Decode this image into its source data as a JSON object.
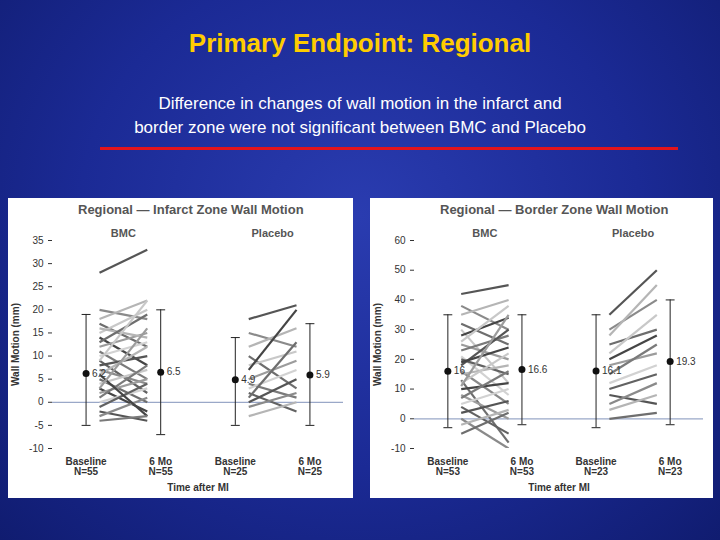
{
  "slide": {
    "title": "Primary Endpoint: Regional",
    "subtitle": [
      "Difference in changes of wall motion in the infarct and",
      "border zone  were not significant between BMC and Placebo"
    ]
  },
  "chart_data": [
    {
      "type": "line",
      "title": "Regional — Infarct Zone Wall Motion",
      "y_label": "Wall Motion (mm)",
      "x_label": "Time after MI",
      "categories": [
        "Baseline\nN=55",
        "6 Mo\nN=55",
        "Baseline\nN=25",
        "6 Mo\nN=25"
      ],
      "ylim": [
        -10,
        35
      ],
      "yticks": [
        -10,
        -5,
        0,
        5,
        10,
        15,
        20,
        25,
        30,
        35
      ],
      "grid": false,
      "means": [
        6.2,
        6.5,
        4.9,
        5.9
      ],
      "error_low": [
        -5,
        -7,
        -5,
        -5
      ],
      "error_high": [
        19,
        20,
        14,
        17
      ],
      "data_labels": true,
      "series": [
        {
          "name": "BMC",
          "values": [
            [
              28,
              33
            ],
            [
              20,
              18
            ],
            [
              18,
              22
            ],
            [
              17,
              12
            ],
            [
              15,
              20
            ],
            [
              14,
              8
            ],
            [
              12,
              15
            ],
            [
              11,
              5
            ],
            [
              10,
              13
            ],
            [
              9,
              2
            ],
            [
              8,
              10
            ],
            [
              7,
              4
            ],
            [
              6,
              12
            ],
            [
              5,
              0
            ],
            [
              4,
              7
            ],
            [
              3,
              -2
            ],
            [
              2,
              5
            ],
            [
              1,
              8
            ],
            [
              0,
              3
            ],
            [
              -1,
              4
            ],
            [
              -2,
              -4
            ],
            [
              -3,
              1
            ],
            [
              16,
              14
            ],
            [
              13,
              19
            ],
            [
              9,
              22
            ],
            [
              6,
              -3
            ],
            [
              3,
              16
            ],
            [
              -4,
              -3
            ]
          ]
        },
        {
          "name": "Placebo",
          "values": [
            [
              18,
              21
            ],
            [
              15,
              12
            ],
            [
              12,
              16
            ],
            [
              10,
              3
            ],
            [
              8,
              11
            ],
            [
              7,
              20
            ],
            [
              5,
              9
            ],
            [
              4,
              1
            ],
            [
              3,
              7
            ],
            [
              2,
              -2
            ],
            [
              0,
              5
            ],
            [
              -1,
              2
            ],
            [
              -3,
              0
            ],
            [
              1,
              13
            ]
          ]
        }
      ]
    },
    {
      "type": "line",
      "title": "Regional — Border Zone Wall Motion",
      "y_label": "Wall Motion (mm)",
      "x_label": "Time after MI",
      "categories": [
        "Baseline\nN=53",
        "6 Mo\nN=53",
        "Baseline\nN=23",
        "6 Mo\nN=23"
      ],
      "ylim": [
        -10,
        60
      ],
      "yticks": [
        -10,
        0,
        10,
        20,
        30,
        40,
        50,
        60
      ],
      "grid": false,
      "means": [
        16,
        16.6,
        16.1,
        19.3
      ],
      "error_low": [
        -3,
        -2,
        -3,
        -2
      ],
      "error_high": [
        35,
        35,
        35,
        40
      ],
      "data_labels": true,
      "series": [
        {
          "name": "BMC",
          "values": [
            [
              42,
              45
            ],
            [
              38,
              30
            ],
            [
              35,
              40
            ],
            [
              32,
              25
            ],
            [
              30,
              12
            ],
            [
              28,
              34
            ],
            [
              25,
              20
            ],
            [
              23,
              28
            ],
            [
              21,
              8
            ],
            [
              20,
              15
            ],
            [
              18,
              30
            ],
            [
              16,
              5
            ],
            [
              15,
              18
            ],
            [
              13,
              -8
            ],
            [
              12,
              22
            ],
            [
              10,
              12
            ],
            [
              8,
              0
            ],
            [
              7,
              16
            ],
            [
              5,
              10
            ],
            [
              4,
              -5
            ],
            [
              2,
              6
            ],
            [
              0,
              -10
            ],
            [
              -2,
              3
            ],
            [
              -5,
              2
            ],
            [
              26,
              38
            ],
            [
              19,
              24
            ],
            [
              11,
              35
            ]
          ]
        },
        {
          "name": "Placebo",
          "values": [
            [
              35,
              50
            ],
            [
              30,
              40
            ],
            [
              28,
              45
            ],
            [
              25,
              30
            ],
            [
              22,
              35
            ],
            [
              20,
              28
            ],
            [
              18,
              22
            ],
            [
              15,
              25
            ],
            [
              12,
              18
            ],
            [
              10,
              15
            ],
            [
              8,
              5
            ],
            [
              5,
              12
            ],
            [
              3,
              8
            ],
            [
              0,
              2
            ]
          ]
        }
      ]
    }
  ]
}
